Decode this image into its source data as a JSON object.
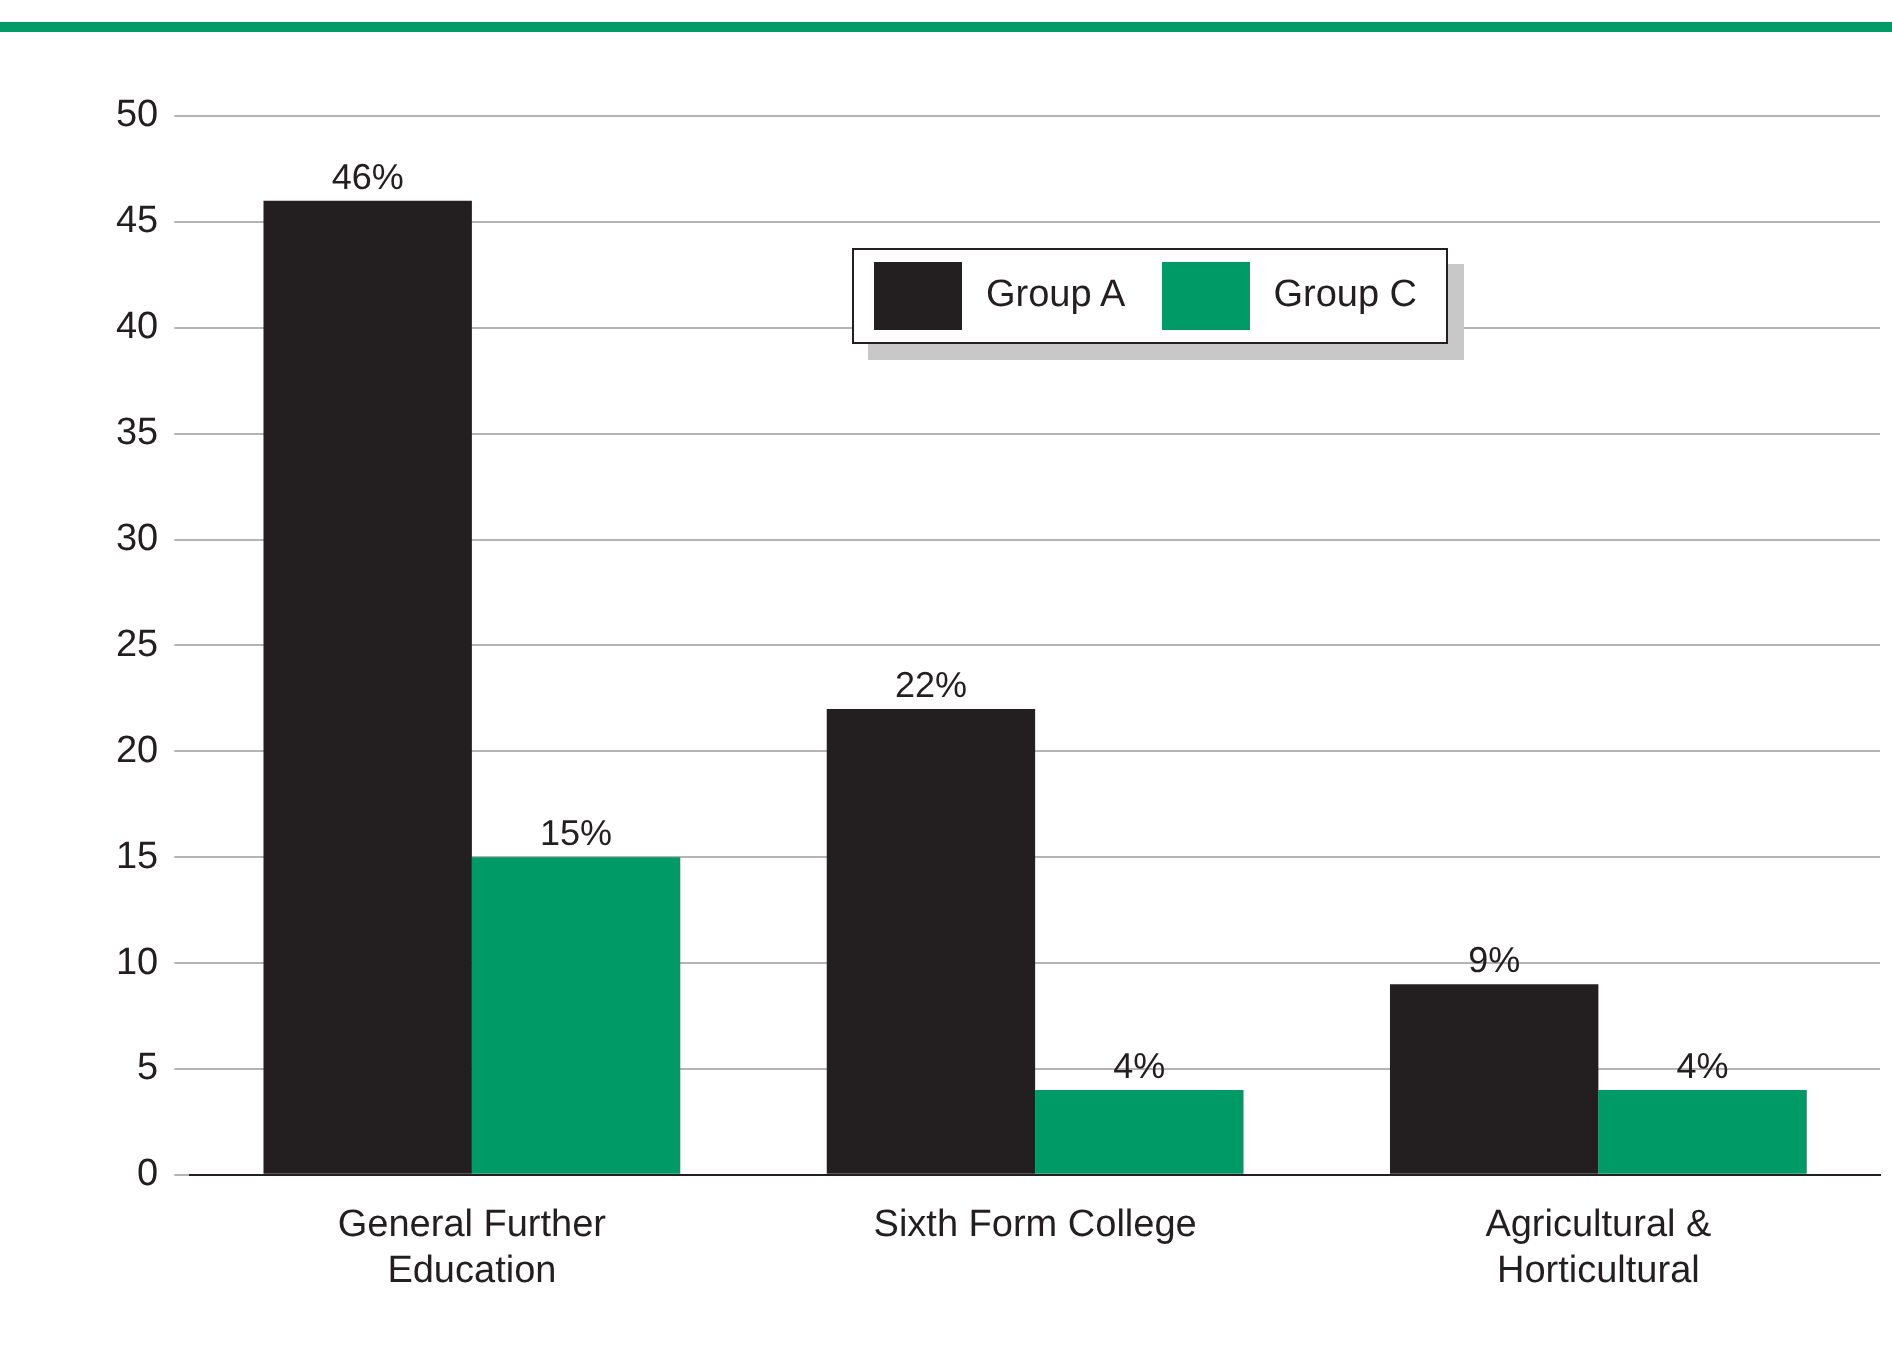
{
  "chart_data": {
    "type": "bar",
    "categories": [
      "General Further Education",
      "Sixth Form College",
      "Agricultural & Horticultural"
    ],
    "series": [
      {
        "name": "Group A",
        "color": "#231f20",
        "values": [
          46,
          22,
          9
        ],
        "value_labels": [
          "46%",
          "22%",
          "9%"
        ]
      },
      {
        "name": "Group C",
        "color": "#009a66",
        "values": [
          15,
          4,
          4
        ],
        "value_labels": [
          "15%",
          "4%",
          "4%"
        ]
      }
    ],
    "ylim": [
      0,
      50
    ],
    "yticks": [
      0,
      5,
      10,
      15,
      20,
      25,
      30,
      35,
      40,
      45,
      50
    ],
    "grid": "y",
    "legend": "top"
  }
}
